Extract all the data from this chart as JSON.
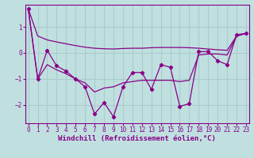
{
  "xlabel": "Windchill (Refroidissement éolien,°C)",
  "background_color": "#c0e0e0",
  "grid_color": "#aacccc",
  "line_color": "#880088",
  "x": [
    0,
    1,
    2,
    3,
    4,
    5,
    6,
    7,
    8,
    9,
    10,
    11,
    12,
    13,
    14,
    15,
    16,
    17,
    18,
    19,
    20,
    21,
    22,
    23
  ],
  "y_main": [
    1.7,
    -1.0,
    0.1,
    -0.5,
    -0.7,
    -1.0,
    -1.3,
    -2.35,
    -1.9,
    -2.45,
    -1.3,
    -0.75,
    -0.75,
    -1.4,
    -0.45,
    -0.55,
    -2.05,
    -1.95,
    0.05,
    0.05,
    -0.3,
    -0.45,
    0.7,
    0.75
  ],
  "y_upper": [
    1.7,
    0.65,
    0.5,
    0.42,
    0.35,
    0.28,
    0.22,
    0.18,
    0.16,
    0.15,
    0.17,
    0.18,
    0.18,
    0.2,
    0.21,
    0.21,
    0.21,
    0.2,
    0.18,
    0.15,
    0.12,
    0.1,
    0.65,
    0.75
  ],
  "y_lower": [
    1.7,
    -1.0,
    -0.45,
    -0.65,
    -0.8,
    -1.0,
    -1.15,
    -1.5,
    -1.35,
    -1.3,
    -1.15,
    -1.1,
    -1.05,
    -1.05,
    -1.05,
    -1.05,
    -1.1,
    -1.05,
    -0.08,
    -0.04,
    -0.04,
    -0.08,
    0.65,
    0.75
  ],
  "ylim": [
    -2.7,
    1.85
  ],
  "xlim": [
    -0.3,
    23.3
  ],
  "yticks": [
    -2,
    -1,
    0,
    1
  ],
  "xticks": [
    0,
    1,
    2,
    3,
    4,
    5,
    6,
    7,
    8,
    9,
    10,
    11,
    12,
    13,
    14,
    15,
    16,
    17,
    18,
    19,
    20,
    21,
    22,
    23
  ],
  "tick_fontsize": 5.5,
  "xlabel_fontsize": 6.5
}
